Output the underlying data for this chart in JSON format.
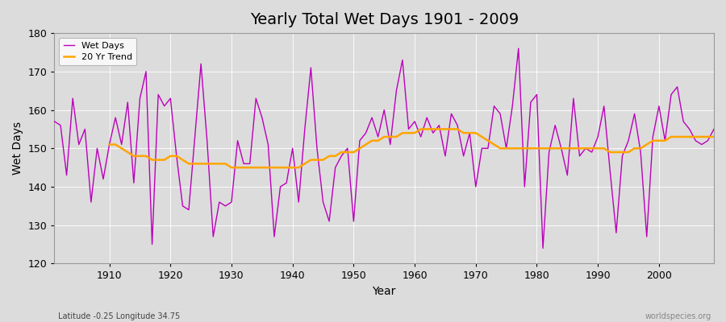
{
  "title": "Yearly Total Wet Days 1901 - 2009",
  "xlabel": "Year",
  "ylabel": "Wet Days",
  "subtitle": "Latitude -0.25 Longitude 34.75",
  "watermark": "worldspecies.org",
  "ylim": [
    120,
    180
  ],
  "xlim": [
    1901,
    2009
  ],
  "background_color": "#dcdcdc",
  "plot_bg_color": "#dcdcdc",
  "wet_days_color": "#bb00bb",
  "trend_color": "#ffa500",
  "wet_days_linewidth": 1.0,
  "trend_linewidth": 1.8,
  "years": [
    1901,
    1902,
    1903,
    1904,
    1905,
    1906,
    1907,
    1908,
    1909,
    1910,
    1911,
    1912,
    1913,
    1914,
    1915,
    1916,
    1917,
    1918,
    1919,
    1920,
    1921,
    1922,
    1923,
    1924,
    1925,
    1926,
    1927,
    1928,
    1929,
    1930,
    1931,
    1932,
    1933,
    1934,
    1935,
    1936,
    1937,
    1938,
    1939,
    1940,
    1941,
    1942,
    1943,
    1944,
    1945,
    1946,
    1947,
    1948,
    1949,
    1950,
    1951,
    1952,
    1953,
    1954,
    1955,
    1956,
    1957,
    1958,
    1959,
    1960,
    1961,
    1962,
    1963,
    1964,
    1965,
    1966,
    1967,
    1968,
    1969,
    1970,
    1971,
    1972,
    1973,
    1974,
    1975,
    1976,
    1977,
    1978,
    1979,
    1980,
    1981,
    1982,
    1983,
    1984,
    1985,
    1986,
    1987,
    1988,
    1989,
    1990,
    1991,
    1992,
    1993,
    1994,
    1995,
    1996,
    1997,
    1998,
    1999,
    2000,
    2001,
    2002,
    2003,
    2004,
    2005,
    2006,
    2007,
    2008,
    2009
  ],
  "wet_days": [
    157,
    156,
    143,
    163,
    151,
    155,
    136,
    150,
    142,
    151,
    158,
    151,
    162,
    141,
    163,
    170,
    125,
    164,
    161,
    163,
    148,
    135,
    134,
    153,
    172,
    152,
    127,
    136,
    135,
    136,
    152,
    146,
    146,
    163,
    158,
    151,
    127,
    140,
    141,
    150,
    136,
    155,
    171,
    150,
    136,
    131,
    145,
    148,
    150,
    131,
    152,
    154,
    158,
    153,
    160,
    151,
    165,
    173,
    155,
    157,
    153,
    158,
    154,
    156,
    148,
    159,
    156,
    148,
    154,
    140,
    150,
    150,
    161,
    159,
    150,
    161,
    176,
    140,
    162,
    164,
    124,
    149,
    156,
    150,
    143,
    163,
    148,
    150,
    149,
    153,
    161,
    144,
    128,
    148,
    152,
    159,
    149,
    127,
    153,
    161,
    152,
    164,
    166,
    157,
    155,
    152,
    151,
    152,
    155
  ],
  "trend": [
    null,
    null,
    null,
    null,
    null,
    null,
    null,
    null,
    null,
    151,
    151,
    150,
    149,
    148,
    148,
    148,
    147,
    147,
    147,
    148,
    148,
    147,
    146,
    146,
    146,
    146,
    146,
    146,
    146,
    145,
    145,
    145,
    145,
    145,
    145,
    145,
    145,
    145,
    145,
    145,
    145,
    146,
    147,
    147,
    147,
    148,
    148,
    149,
    149,
    149,
    150,
    151,
    152,
    152,
    153,
    153,
    153,
    154,
    154,
    154,
    155,
    155,
    155,
    155,
    155,
    155,
    155,
    154,
    154,
    154,
    153,
    152,
    151,
    150,
    150,
    150,
    150,
    150,
    150,
    150,
    150,
    150,
    150,
    150,
    150,
    150,
    150,
    150,
    150,
    150,
    150,
    149,
    149,
    149,
    149,
    150,
    150,
    151,
    152,
    152,
    152,
    153,
    153,
    153,
    153,
    153,
    153,
    153,
    153
  ]
}
